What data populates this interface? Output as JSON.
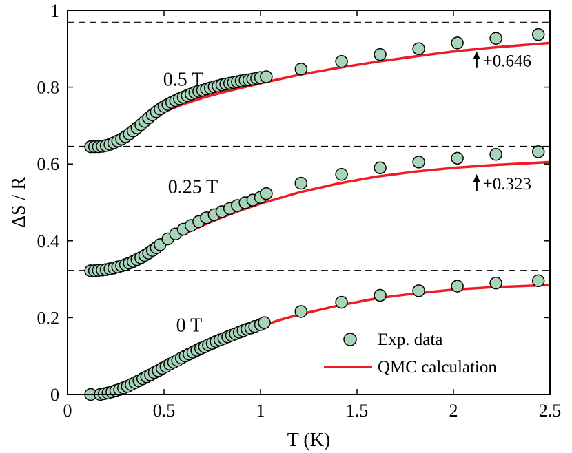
{
  "chart_data": {
    "type": "scatter",
    "xlabel": "T (K)",
    "ylabel": "ΔS / R",
    "xlim": [
      0,
      2.5
    ],
    "ylim": [
      0,
      1
    ],
    "xticks": [
      0,
      0.5,
      1,
      1.5,
      2,
      2.5
    ],
    "xtick_labels": [
      "0",
      "0.5",
      "1",
      "1.5",
      "2",
      "2.5"
    ],
    "yticks": [
      0,
      0.2,
      0.4,
      0.6,
      0.8,
      1
    ],
    "ytick_labels": [
      "0",
      "0.2",
      "0.4",
      "0.6",
      "0.8",
      "1"
    ],
    "grid": false,
    "legend_position": "bottom-right",
    "colors": {
      "marker_fill": "#a8d5ba",
      "marker_edge": "#000000",
      "line": "#ee1c25",
      "reference_line": "#000000"
    },
    "reference_lines": [
      {
        "y": 0.323,
        "style": "dashed"
      },
      {
        "y": 0.646,
        "style": "dashed"
      },
      {
        "y": 0.969,
        "style": "dashed"
      }
    ],
    "annotations": [
      {
        "text": "0 T",
        "x": 0.63,
        "y": 0.18
      },
      {
        "text": "0.25 T",
        "x": 0.65,
        "y": 0.54
      },
      {
        "text": "0.5 T",
        "x": 0.6,
        "y": 0.82
      }
    ],
    "offset_labels": [
      {
        "text": "+0.646",
        "x": 2.12,
        "y_from": 0.85,
        "y_to": 0.89
      },
      {
        "text": "+0.323",
        "x": 2.12,
        "y_from": 0.53,
        "y_to": 0.57
      }
    ],
    "series": [
      {
        "name": "Exp. data",
        "kind": "markers",
        "groups": [
          {
            "field": "0 T",
            "x": [
              0.12,
              0.17,
              0.19,
              0.21,
              0.23,
              0.25,
              0.27,
              0.29,
              0.31,
              0.33,
              0.35,
              0.37,
              0.39,
              0.41,
              0.43,
              0.45,
              0.47,
              0.49,
              0.51,
              0.53,
              0.55,
              0.57,
              0.59,
              0.61,
              0.63,
              0.65,
              0.67,
              0.69,
              0.71,
              0.73,
              0.75,
              0.77,
              0.79,
              0.81,
              0.83,
              0.85,
              0.87,
              0.89,
              0.91,
              0.93,
              0.95,
              0.97,
              1.0,
              1.02,
              1.21,
              1.42,
              1.62,
              1.82,
              2.02,
              2.22,
              2.44
            ],
            "y": [
              0.0,
              0.0,
              0.002,
              0.004,
              0.007,
              0.01,
              0.013,
              0.017,
              0.021,
              0.026,
              0.031,
              0.036,
              0.041,
              0.046,
              0.051,
              0.057,
              0.062,
              0.068,
              0.073,
              0.079,
              0.084,
              0.089,
              0.095,
              0.1,
              0.105,
              0.11,
              0.115,
              0.12,
              0.124,
              0.129,
              0.133,
              0.138,
              0.142,
              0.146,
              0.15,
              0.154,
              0.158,
              0.162,
              0.166,
              0.17,
              0.173,
              0.177,
              0.182,
              0.187,
              0.216,
              0.24,
              0.258,
              0.27,
              0.282,
              0.29,
              0.296
            ]
          },
          {
            "field": "0.25 T",
            "x": [
              0.12,
              0.14,
              0.16,
              0.18,
              0.2,
              0.22,
              0.24,
              0.26,
              0.28,
              0.3,
              0.32,
              0.34,
              0.36,
              0.38,
              0.4,
              0.42,
              0.44,
              0.46,
              0.48,
              0.52,
              0.56,
              0.6,
              0.64,
              0.68,
              0.72,
              0.76,
              0.8,
              0.84,
              0.88,
              0.92,
              0.96,
              1.0,
              1.03,
              1.21,
              1.42,
              1.62,
              1.82,
              2.02,
              2.22,
              2.44
            ],
            "y": [
              0.322,
              0.322,
              0.323,
              0.324,
              0.325,
              0.327,
              0.329,
              0.332,
              0.335,
              0.338,
              0.342,
              0.346,
              0.351,
              0.356,
              0.362,
              0.368,
              0.375,
              0.382,
              0.39,
              0.405,
              0.418,
              0.43,
              0.44,
              0.45,
              0.46,
              0.468,
              0.476,
              0.484,
              0.492,
              0.499,
              0.506,
              0.513,
              0.523,
              0.55,
              0.573,
              0.59,
              0.605,
              0.615,
              0.625,
              0.632
            ]
          },
          {
            "field": "0.5 T",
            "x": [
              0.12,
              0.14,
              0.16,
              0.18,
              0.2,
              0.22,
              0.24,
              0.26,
              0.28,
              0.3,
              0.32,
              0.34,
              0.36,
              0.38,
              0.4,
              0.42,
              0.44,
              0.46,
              0.48,
              0.5,
              0.52,
              0.54,
              0.56,
              0.58,
              0.6,
              0.62,
              0.64,
              0.66,
              0.68,
              0.7,
              0.72,
              0.74,
              0.76,
              0.78,
              0.8,
              0.82,
              0.84,
              0.86,
              0.88,
              0.9,
              0.92,
              0.94,
              0.96,
              0.98,
              1.0,
              1.03,
              1.21,
              1.42,
              1.62,
              1.82,
              2.02,
              2.22,
              2.44
            ],
            "y": [
              0.645,
              0.645,
              0.645,
              0.646,
              0.648,
              0.651,
              0.655,
              0.66,
              0.665,
              0.671,
              0.678,
              0.686,
              0.694,
              0.702,
              0.711,
              0.72,
              0.728,
              0.736,
              0.743,
              0.75,
              0.755,
              0.76,
              0.765,
              0.77,
              0.774,
              0.778,
              0.782,
              0.786,
              0.789,
              0.792,
              0.795,
              0.798,
              0.801,
              0.803,
              0.806,
              0.808,
              0.81,
              0.812,
              0.814,
              0.816,
              0.818,
              0.819,
              0.821,
              0.823,
              0.825,
              0.827,
              0.847,
              0.867,
              0.885,
              0.9,
              0.915,
              0.927,
              0.937
            ]
          }
        ]
      },
      {
        "name": "QMC calculation",
        "kind": "line",
        "groups": [
          {
            "field": "0 T",
            "x": [
              0.2,
              0.3,
              0.4,
              0.5,
              0.6,
              0.7,
              0.8,
              0.9,
              1.0,
              1.1,
              1.2,
              1.4,
              1.6,
              1.8,
              2.0,
              2.2,
              2.5
            ],
            "y": [
              0.001,
              0.01,
              0.03,
              0.057,
              0.087,
              0.113,
              0.137,
              0.158,
              0.177,
              0.194,
              0.208,
              0.231,
              0.25,
              0.263,
              0.273,
              0.279,
              0.285
            ]
          },
          {
            "field": "0.25 T",
            "x": [
              0.18,
              0.25,
              0.3,
              0.35,
              0.4,
              0.45,
              0.5,
              0.6,
              0.7,
              0.8,
              0.9,
              1.0,
              1.2,
              1.4,
              1.6,
              1.8,
              2.0,
              2.2,
              2.5
            ],
            "y": [
              0.323,
              0.327,
              0.335,
              0.346,
              0.361,
              0.376,
              0.391,
              0.417,
              0.44,
              0.461,
              0.48,
              0.497,
              0.526,
              0.549,
              0.567,
              0.58,
              0.59,
              0.597,
              0.605
            ]
          },
          {
            "field": "0.5 T",
            "x": [
              0.18,
              0.22,
              0.26,
              0.3,
              0.34,
              0.38,
              0.42,
              0.46,
              0.5,
              0.55,
              0.6,
              0.7,
              0.8,
              0.9,
              1.0,
              1.2,
              1.4,
              1.6,
              1.8,
              2.0,
              2.2,
              2.5
            ],
            "y": [
              0.646,
              0.648,
              0.654,
              0.663,
              0.677,
              0.693,
              0.71,
              0.724,
              0.735,
              0.746,
              0.756,
              0.772,
              0.786,
              0.798,
              0.81,
              0.832,
              0.85,
              0.866,
              0.88,
              0.893,
              0.903,
              0.915
            ]
          }
        ]
      }
    ]
  }
}
